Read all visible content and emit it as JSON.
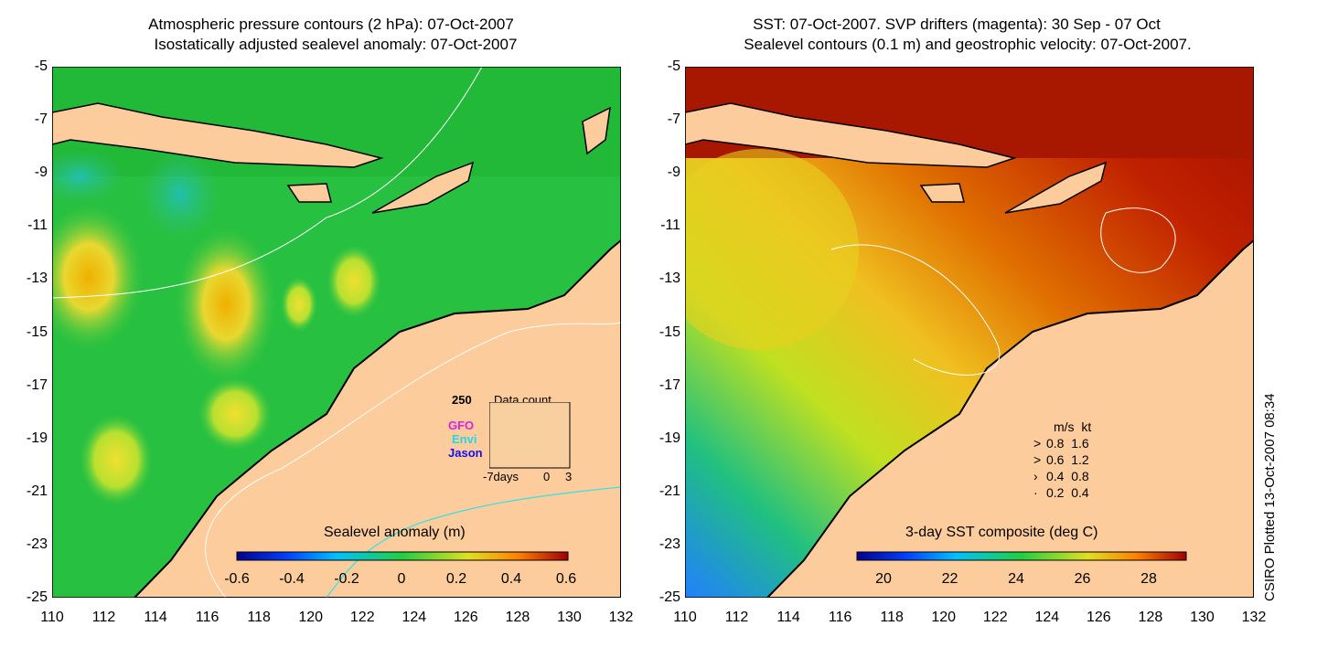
{
  "left_panel": {
    "title_line1": "Atmospheric pressure contours (2 hPa): 07-Oct-2007",
    "title_line2": "Isostatically adjusted sealevel anomaly: 07-Oct-2007",
    "colorbar_label": "Sealevel anomaly (m)",
    "colorbar_ticks": [
      "-0.6",
      "-0.4",
      "-0.2",
      "0",
      "0.2",
      "0.4",
      "0.6"
    ],
    "inset": {
      "y_label": "250",
      "title": "Data count",
      "legend": [
        "GFO",
        "Envi",
        "Jason"
      ],
      "x_labels": [
        "-7days",
        "0",
        "3"
      ]
    }
  },
  "right_panel": {
    "title_line1": "SST: 07-Oct-2007. SVP drifters (magenta): 30 Sep - 07 Oct",
    "title_line2": "Sealevel contours (0.1 m) and geostrophic velocity: 07-Oct-2007.",
    "colorbar_label": "3-day SST composite (deg C)",
    "colorbar_ticks": [
      "20",
      "22",
      "24",
      "26",
      "28"
    ],
    "speed_legend": {
      "header": [
        "m/s",
        "kt"
      ],
      "rows": [
        [
          "0.8",
          "1.6"
        ],
        [
          "0.6",
          "1.2"
        ],
        [
          "0.4",
          "0.8"
        ],
        [
          "0.2",
          "0.4"
        ]
      ]
    }
  },
  "axes": {
    "y_ticks": [
      "-5",
      "-7",
      "-9",
      "-11",
      "-13",
      "-15",
      "-17",
      "-19",
      "-21",
      "-23",
      "-25"
    ],
    "x_ticks": [
      "110",
      "112",
      "114",
      "116",
      "118",
      "120",
      "122",
      "124",
      "126",
      "128",
      "130",
      "132"
    ]
  },
  "credit": "CSIRO Plotted 13-Oct-2007 08:34",
  "colors": {
    "land": "#fccc9c",
    "sea_green": "#22cc44",
    "sst_red": "#a81800",
    "contour": "#ffffff"
  }
}
